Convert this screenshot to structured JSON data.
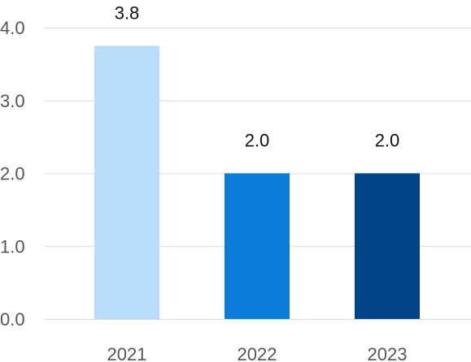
{
  "chart_data": {
    "type": "bar",
    "categories": [
      "2021",
      "2022",
      "2023"
    ],
    "values": [
      3.75,
      2.0,
      2.0
    ],
    "data_labels": [
      "3.8",
      "2.0",
      "2.0"
    ],
    "bar_colors": [
      "#b9dcfa",
      "#0a7cd7",
      "#004587"
    ],
    "ylim": [
      0,
      4
    ],
    "y_ticks": [
      "0.0",
      "1.0",
      "2.0",
      "3.0",
      "4.0"
    ],
    "y_tick_values": [
      0,
      1,
      2,
      3,
      4
    ],
    "grid": true,
    "legend": "none",
    "title": "",
    "xlabel": "",
    "ylabel": ""
  }
}
